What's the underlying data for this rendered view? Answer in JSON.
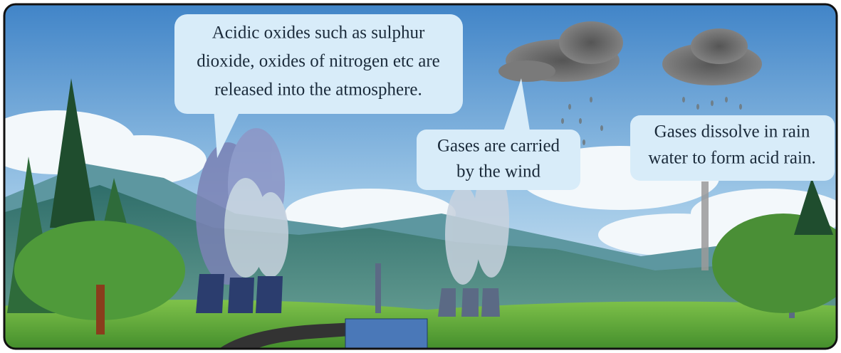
{
  "callouts": [
    {
      "lines": [
        "Acidic oxides such as sulphur",
        "dioxide, oxides of nitrogen etc are",
        "released into the atmosphere."
      ]
    },
    {
      "lines": [
        "Gases are carried",
        "by the wind"
      ]
    },
    {
      "lines": [
        "Gases dissolve in rain",
        "water to form acid rain."
      ]
    }
  ]
}
